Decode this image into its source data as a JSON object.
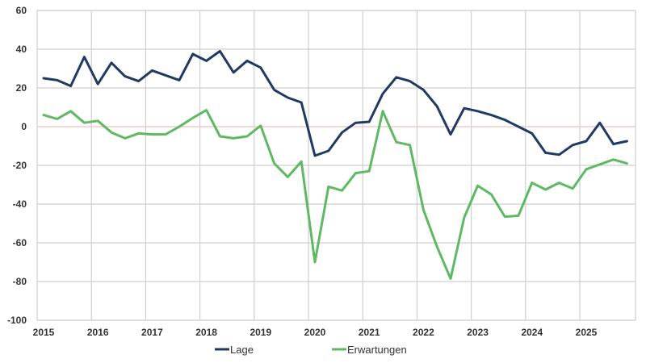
{
  "chart_data": {
    "type": "line",
    "title": "",
    "xlabel": "",
    "ylabel": "",
    "ylim": [
      -100,
      60
    ],
    "yticks": [
      60,
      40,
      20,
      0,
      -20,
      -40,
      -60,
      -80,
      -100
    ],
    "xticks": [
      "2015",
      "2016",
      "2017",
      "2018",
      "2019",
      "2020",
      "2021",
      "2022",
      "2023",
      "2024",
      "2025"
    ],
    "grid": true,
    "legend_position": "bottom",
    "x": [
      "2015Q1",
      "2015Q2",
      "2015Q3",
      "2015Q4",
      "2016Q1",
      "2016Q2",
      "2016Q3",
      "2016Q4",
      "2017Q1",
      "2017Q2",
      "2017Q3",
      "2017Q4",
      "2018Q1",
      "2018Q2",
      "2018Q3",
      "2018Q4",
      "2019Q1",
      "2019Q2",
      "2019Q3",
      "2019Q4",
      "2020Q1",
      "2020Q2",
      "2020Q3",
      "2020Q4",
      "2021Q1",
      "2021Q2",
      "2021Q3",
      "2021Q4",
      "2022Q1",
      "2022Q2",
      "2022Q3",
      "2022Q4",
      "2023Q1",
      "2023Q2",
      "2023Q3",
      "2023Q4",
      "2024Q1",
      "2024Q2",
      "2024Q3",
      "2024Q4",
      "2025Q1",
      "2025Q2",
      "2025Q3",
      "2025Q4"
    ],
    "series": [
      {
        "name": "Lage",
        "color": "#1f3b63",
        "values": [
          25,
          24,
          21,
          36,
          22,
          33,
          26,
          23.5,
          29,
          26.5,
          24,
          37.5,
          34,
          39,
          28,
          34,
          30.5,
          19,
          15,
          12.5,
          -15,
          -12.5,
          -3,
          2,
          2.5,
          17,
          25.5,
          23.5,
          19,
          10.5,
          -4,
          9.5,
          8,
          6,
          3.5,
          0,
          -3.5,
          -13.5,
          -14.5,
          -9.5,
          -7.5,
          2,
          -9,
          -7.5
        ]
      },
      {
        "name": "Erwartungen",
        "color": "#5fb862",
        "values": [
          6,
          4,
          8,
          2,
          3,
          -3,
          -6,
          -3.5,
          -4,
          -4,
          0,
          4.5,
          8.5,
          -5,
          -6,
          -5,
          0.5,
          -19,
          -26,
          -18,
          -70,
          -31,
          -33,
          -24,
          -23,
          8,
          -8,
          -9.5,
          -43,
          -62,
          -78.5,
          -47,
          -30.5,
          -35,
          -46.5,
          -46,
          -29,
          -32.5,
          -29,
          -32,
          -22,
          -19.5,
          -17,
          -19
        ]
      }
    ],
    "reference_line": {
      "value": 0,
      "color": "#f2c9c9"
    },
    "colors": {
      "grid": "#cfcfcf",
      "axis_text": "#333333"
    }
  }
}
